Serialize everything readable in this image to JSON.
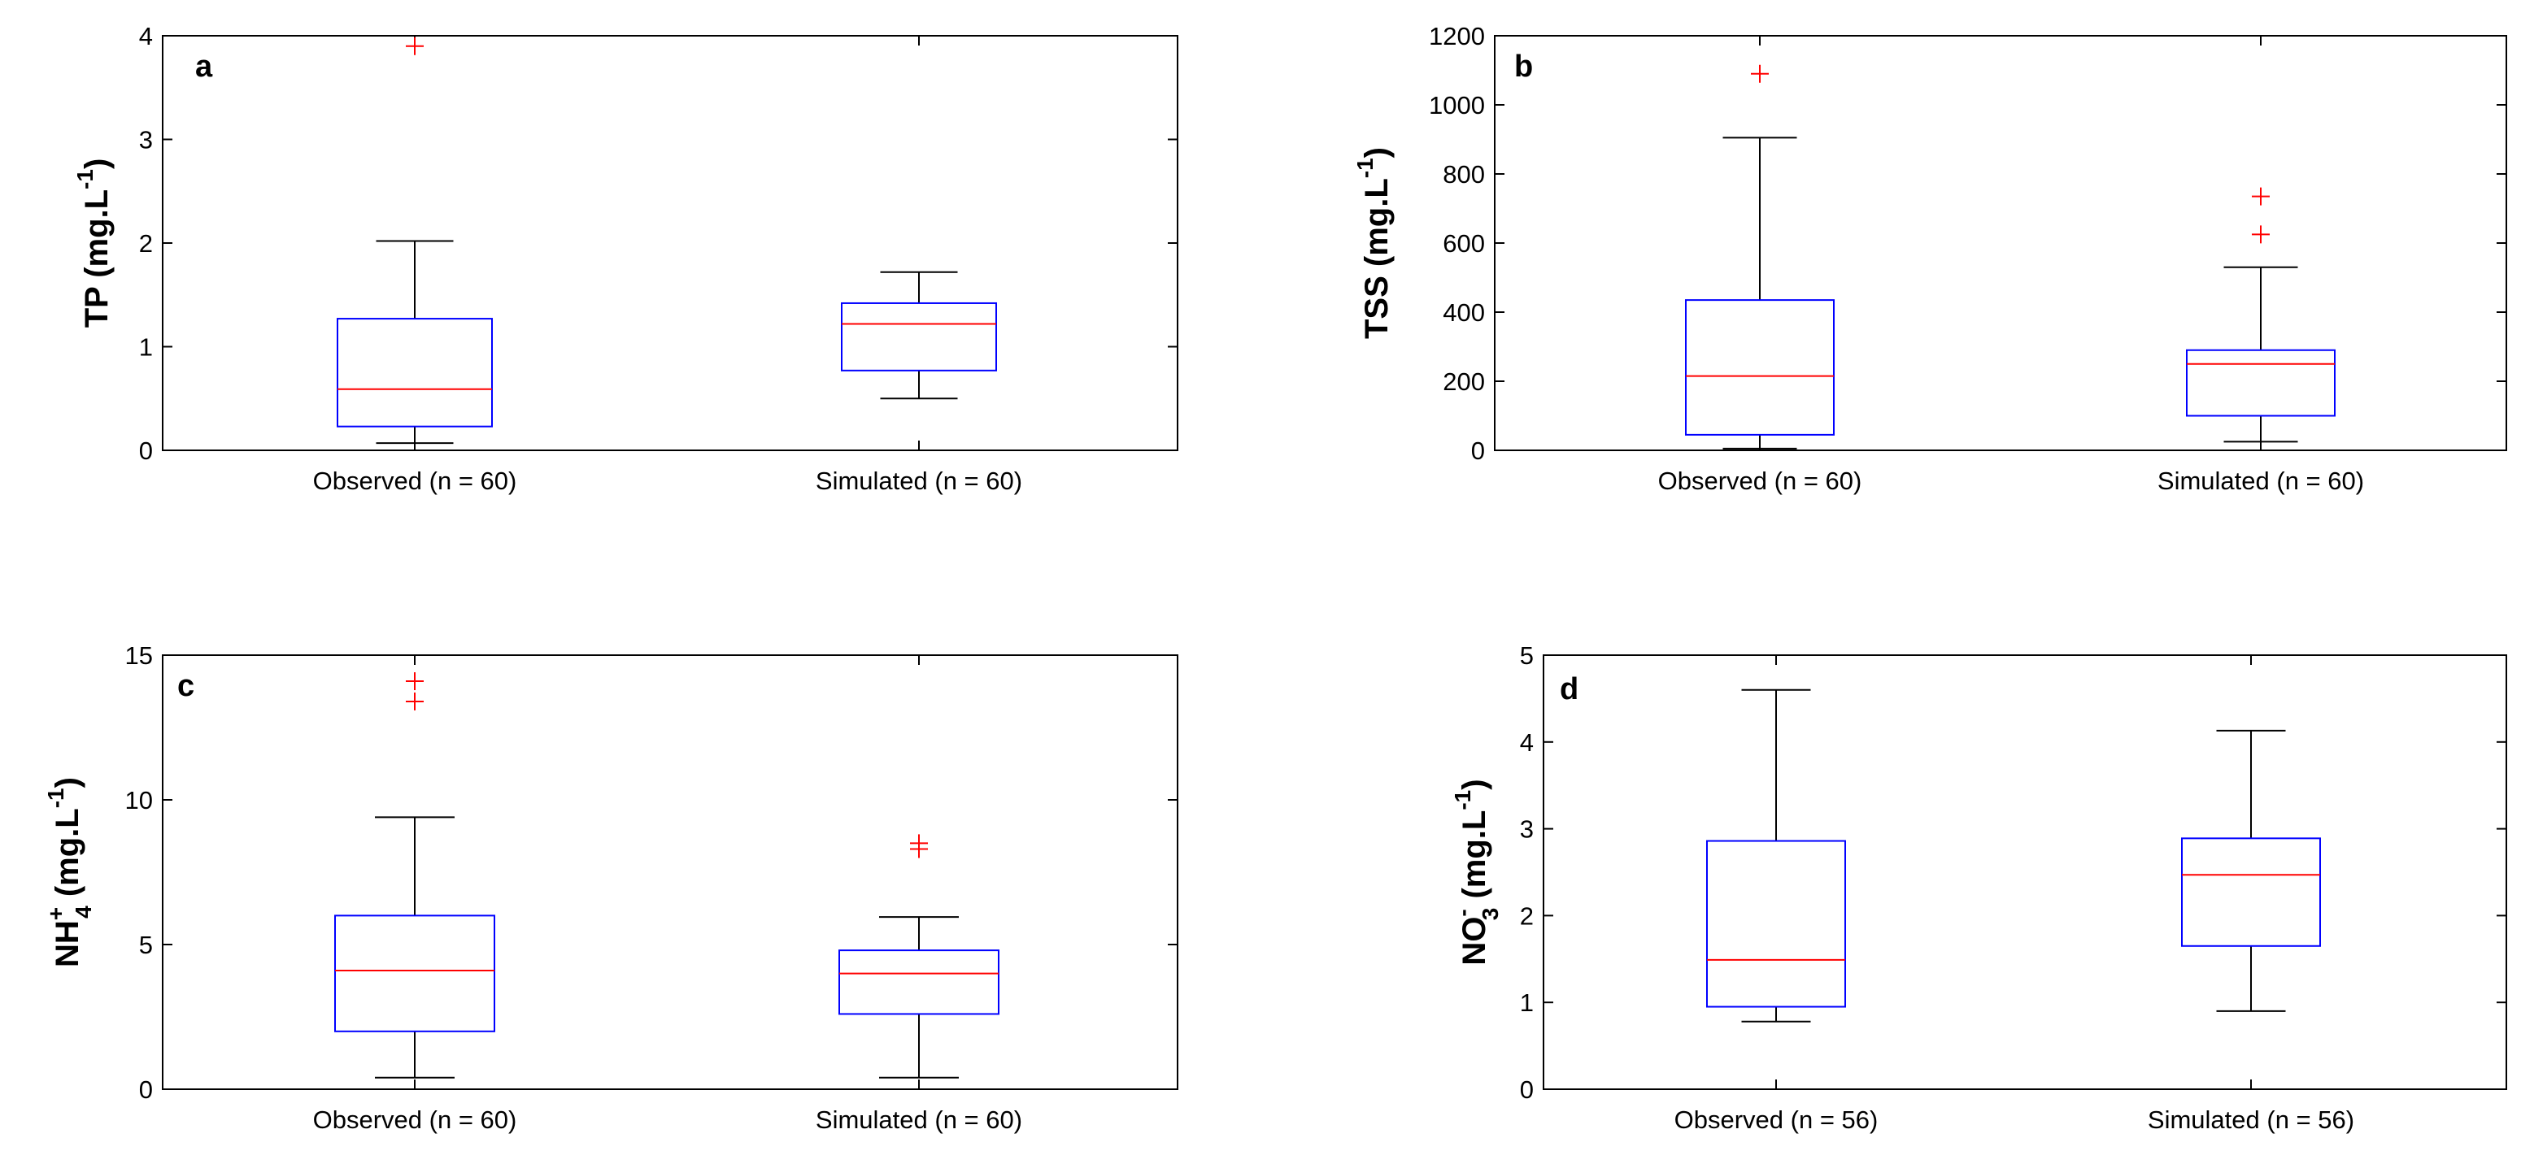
{
  "chart_data": [
    {
      "type": "boxplot",
      "panel_label": "a",
      "ylabel": {
        "main": "TP (mg.L",
        "sup": "-1",
        "end": ")"
      },
      "ylim": [
        0,
        4
      ],
      "yticks": [
        0,
        1,
        2,
        3,
        4
      ],
      "categories": [
        "Observed (n = 60)",
        "Simulated (n = 60)"
      ],
      "boxes": [
        {
          "whisker_low": 0.07,
          "q1": 0.23,
          "median": 0.59,
          "q3": 1.27,
          "whisker_high": 2.02,
          "outliers": [
            3.9
          ]
        },
        {
          "whisker_low": 0.5,
          "q1": 0.77,
          "median": 1.22,
          "q3": 1.42,
          "whisker_high": 1.72,
          "outliers": []
        }
      ]
    },
    {
      "type": "boxplot",
      "panel_label": "b",
      "ylabel": {
        "main": "TSS (mg.L",
        "sup": "-1",
        "end": ")"
      },
      "ylim": [
        0,
        1200
      ],
      "yticks": [
        0,
        200,
        400,
        600,
        800,
        1000,
        1200
      ],
      "categories": [
        "Observed (n = 60)",
        "Simulated (n = 60)"
      ],
      "boxes": [
        {
          "whisker_low": 5,
          "q1": 45,
          "median": 215,
          "q3": 435,
          "whisker_high": 905,
          "outliers": [
            1090
          ]
        },
        {
          "whisker_low": 25,
          "q1": 100,
          "median": 250,
          "q3": 290,
          "whisker_high": 530,
          "outliers": [
            625,
            735
          ]
        }
      ]
    },
    {
      "type": "boxplot",
      "panel_label": "c",
      "ylabel": {
        "main": "NH",
        "sup": "+",
        "sub": "4",
        "end": " (mg.L",
        "sup2": "-1",
        "end2": ")"
      },
      "ylim": [
        0,
        15
      ],
      "yticks": [
        0,
        5,
        10,
        15
      ],
      "categories": [
        "Observed (n = 60)",
        "Simulated (n = 60)"
      ],
      "boxes": [
        {
          "whisker_low": 0.4,
          "q1": 2.0,
          "median": 4.1,
          "q3": 6.0,
          "whisker_high": 9.4,
          "outliers": [
            13.4,
            14.1
          ]
        },
        {
          "whisker_low": 0.4,
          "q1": 2.6,
          "median": 4.0,
          "q3": 4.8,
          "whisker_high": 5.95,
          "outliers": [
            8.3,
            8.5
          ]
        }
      ]
    },
    {
      "type": "boxplot",
      "panel_label": "d",
      "ylabel": {
        "main": "NO",
        "sup": "-",
        "sub": "3",
        "end": " (mg.L",
        "sup2": "-1",
        "end2": ")"
      },
      "ylim": [
        0,
        5
      ],
      "yticks": [
        0,
        1,
        2,
        3,
        4,
        5
      ],
      "categories": [
        "Observed (n = 56)",
        "Simulated (n = 56)"
      ],
      "boxes": [
        {
          "whisker_low": 0.78,
          "q1": 0.95,
          "median": 1.49,
          "q3": 2.86,
          "whisker_high": 4.6,
          "outliers": []
        },
        {
          "whisker_low": 0.9,
          "q1": 1.65,
          "median": 2.47,
          "q3": 2.89,
          "whisker_high": 4.13,
          "outliers": []
        }
      ]
    }
  ],
  "colors": {
    "box": "#0000ff",
    "median": "#ff0000",
    "outlier": "#ff0000",
    "whisker": "#000000",
    "axis": "#000000"
  }
}
